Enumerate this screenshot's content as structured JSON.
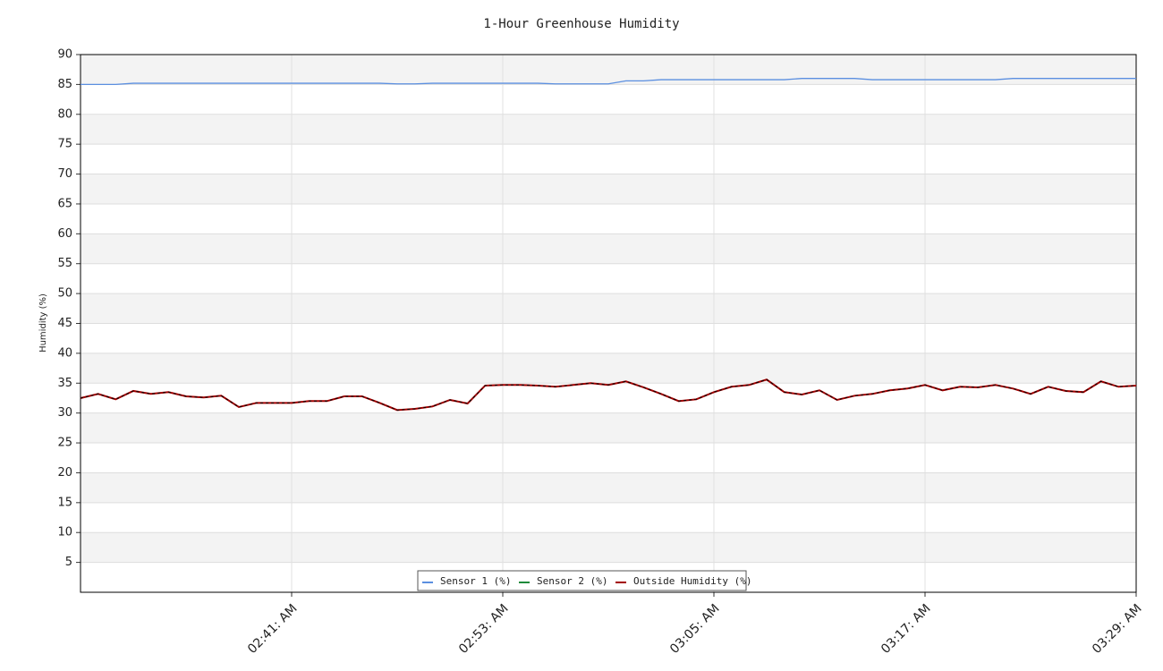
{
  "chart_data": {
    "type": "line",
    "title": "1-Hour Greenhouse Humidity",
    "y_label": "Humidity (%)",
    "x": [
      "02:29 AM",
      "02:30 AM",
      "02:31 AM",
      "02:32 AM",
      "02:33 AM",
      "02:34 AM",
      "02:35 AM",
      "02:36 AM",
      "02:37 AM",
      "02:38 AM",
      "02:39 AM",
      "02:40 AM",
      "02:41 AM",
      "02:42 AM",
      "02:43 AM",
      "02:44 AM",
      "02:45 AM",
      "02:46 AM",
      "02:47 AM",
      "02:48 AM",
      "02:49 AM",
      "02:50 AM",
      "02:51 AM",
      "02:52 AM",
      "02:53 AM",
      "02:54 AM",
      "02:55 AM",
      "02:56 AM",
      "02:57 AM",
      "02:58 AM",
      "02:59 AM",
      "03:00 AM",
      "03:01 AM",
      "03:02 AM",
      "03:03 AM",
      "03:04 AM",
      "03:05 AM",
      "03:06 AM",
      "03:07 AM",
      "03:08 AM",
      "03:09 AM",
      "03:10 AM",
      "03:11 AM",
      "03:12 AM",
      "03:13 AM",
      "03:14 AM",
      "03:15 AM",
      "03:16 AM",
      "03:17 AM",
      "03:18 AM",
      "03:19 AM",
      "03:20 AM",
      "03:21 AM",
      "03:22 AM",
      "03:23 AM",
      "03:24 AM",
      "03:25 AM",
      "03:26 AM",
      "03:27 AM",
      "03:28 AM",
      "03:29 AM"
    ],
    "xticks": [
      {
        "value": "02:41 AM",
        "label": "02:41: AM"
      },
      {
        "value": "02:53 AM",
        "label": "02:53: AM"
      },
      {
        "value": "03:05 AM",
        "label": "03:05: AM"
      },
      {
        "value": "03:17 AM",
        "label": "03:17: AM"
      },
      {
        "value": "03:29 AM",
        "label": "03:29: AM"
      }
    ],
    "ylim": [
      0,
      90
    ],
    "yticks": [
      5,
      10,
      15,
      20,
      25,
      30,
      35,
      40,
      45,
      50,
      55,
      60,
      65,
      70,
      75,
      80,
      85,
      90
    ],
    "grid": true,
    "series": [
      {
        "name": "Sensor 1 (%)",
        "color": "#5b8fe0",
        "values": [
          85,
          85,
          85,
          85.2,
          85.2,
          85.2,
          85.2,
          85.2,
          85.2,
          85.2,
          85.2,
          85.2,
          85.2,
          85.2,
          85.2,
          85.2,
          85.2,
          85.2,
          85.1,
          85.1,
          85.2,
          85.2,
          85.2,
          85.2,
          85.2,
          85.2,
          85.2,
          85.1,
          85.1,
          85.1,
          85.1,
          85.6,
          85.6,
          85.8,
          85.8,
          85.8,
          85.8,
          85.8,
          85.8,
          85.8,
          85.8,
          86,
          86,
          86,
          86,
          85.8,
          85.8,
          85.8,
          85.8,
          85.8,
          85.8,
          85.8,
          85.8,
          86,
          86,
          86,
          86,
          86,
          86,
          86,
          86
        ]
      },
      {
        "name": "Sensor 2 (%)",
        "color": "#1e8a3a",
        "values": [
          32.5,
          33.2,
          32.3,
          33.7,
          33.2,
          33.5,
          32.8,
          32.6,
          32.9,
          31,
          31.7,
          31.7,
          31.7,
          32,
          32,
          32.8,
          32.8,
          31.7,
          30.5,
          30.7,
          31.1,
          32.2,
          31.6,
          34.6,
          34.7,
          34.7,
          34.6,
          34.4,
          34.7,
          35,
          34.7,
          35.3,
          34.3,
          33.2,
          32,
          32.3,
          33.5,
          34.4,
          34.7,
          35.6,
          33.5,
          33.1,
          33.8,
          32.2,
          32.9,
          33.2,
          33.8,
          34.1,
          34.7,
          33.8,
          34.4,
          34.3,
          34.7,
          34.1,
          33.2,
          34.4,
          33.7,
          33.5,
          35.3,
          34.4,
          34.6
        ]
      },
      {
        "name": "Outside Humidity (%)",
        "color": "#a30000",
        "dashed": true,
        "values": [
          32.5,
          33.2,
          32.3,
          33.7,
          33.2,
          33.5,
          32.8,
          32.6,
          32.9,
          31,
          31.7,
          31.7,
          31.7,
          32,
          32,
          32.8,
          32.8,
          31.7,
          30.5,
          30.7,
          31.1,
          32.2,
          31.6,
          34.6,
          34.7,
          34.7,
          34.6,
          34.4,
          34.7,
          35,
          34.7,
          35.3,
          34.3,
          33.2,
          32,
          32.3,
          33.5,
          34.4,
          34.7,
          35.6,
          33.5,
          33.1,
          33.8,
          32.2,
          32.9,
          33.2,
          33.8,
          34.1,
          34.7,
          33.8,
          34.4,
          34.3,
          34.7,
          34.1,
          33.2,
          34.4,
          33.7,
          33.5,
          35.3,
          34.4,
          34.6
        ]
      }
    ]
  }
}
